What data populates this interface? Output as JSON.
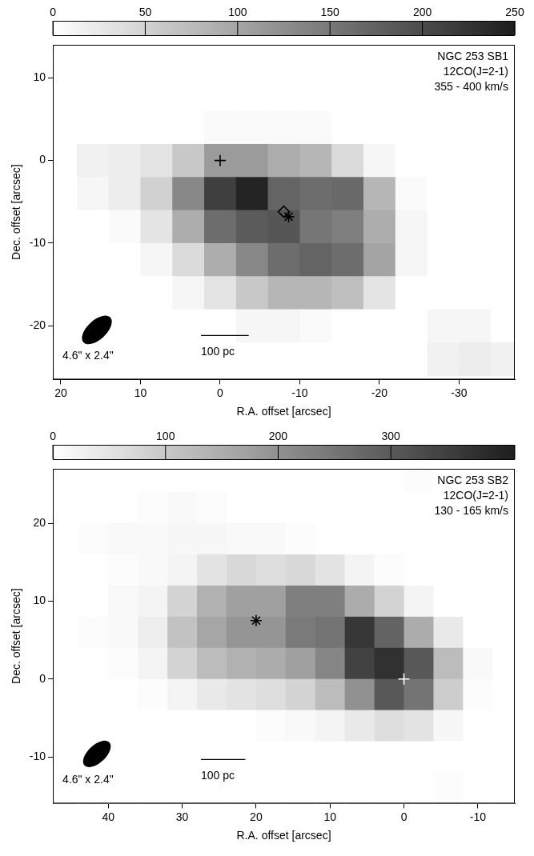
{
  "chart_data": [
    {
      "type": "heatmap",
      "annotations": [
        "NGC 253 SB1",
        "12CO(J=2-1)",
        "355 - 400 km/s"
      ],
      "xlabel": "R.A. offset [arcsec]",
      "ylabel": "Dec. offset [arcsec]",
      "xlim": [
        21,
        -37
      ],
      "ylim": [
        -26.5,
        14
      ],
      "xticks": [
        20,
        10,
        0,
        -10,
        -20,
        -30
      ],
      "yticks": [
        -20,
        -10,
        0,
        10
      ],
      "grid": false,
      "colorbar": {
        "range": [
          0,
          250
        ],
        "ticks": [
          0,
          50,
          100,
          150,
          200,
          250
        ]
      },
      "x": [
        20,
        16,
        12,
        8,
        4,
        0,
        -4,
        -8,
        -12,
        -16,
        -20,
        -24,
        -28,
        -32,
        -36
      ],
      "y": [
        12,
        8,
        4,
        0,
        -4,
        -8,
        -12,
        -16,
        -20,
        -24
      ],
      "cells": [
        [
          0,
          0,
          0,
          0,
          0,
          0,
          0,
          0,
          0,
          0,
          0,
          0,
          0,
          0,
          0
        ],
        [
          0,
          0,
          0,
          0,
          0,
          0,
          0,
          0,
          0,
          0,
          0,
          0,
          0,
          0,
          0
        ],
        [
          0,
          0,
          0,
          0,
          0,
          5,
          5,
          5,
          5,
          0,
          0,
          0,
          0,
          0,
          0
        ],
        [
          0,
          15,
          20,
          30,
          60,
          110,
          110,
          90,
          80,
          40,
          10,
          0,
          0,
          0,
          0
        ],
        [
          0,
          10,
          20,
          50,
          130,
          210,
          240,
          170,
          160,
          165,
          80,
          5,
          0,
          0,
          0
        ],
        [
          0,
          0,
          5,
          30,
          90,
          160,
          180,
          185,
          150,
          140,
          90,
          10,
          0,
          0,
          0
        ],
        [
          0,
          0,
          0,
          10,
          40,
          90,
          130,
          160,
          170,
          160,
          100,
          10,
          0,
          0,
          0
        ],
        [
          0,
          0,
          0,
          0,
          10,
          30,
          60,
          80,
          80,
          70,
          30,
          0,
          0,
          0,
          0
        ],
        [
          0,
          0,
          0,
          0,
          0,
          0,
          10,
          10,
          5,
          0,
          0,
          0,
          10,
          10,
          0
        ],
        [
          0,
          0,
          0,
          0,
          0,
          0,
          0,
          0,
          0,
          0,
          0,
          0,
          15,
          20,
          15
        ]
      ],
      "markers": [
        {
          "x": 0,
          "y": 0,
          "marker": "cross",
          "color": "#000000"
        },
        {
          "x": -8,
          "y": -6.2,
          "marker": "diamond",
          "color": "#000000"
        },
        {
          "x": -8.6,
          "y": -6.8,
          "marker": "asterisk",
          "color": "#000000"
        }
      ],
      "beam": {
        "label": "4.6\" x 2.4\"",
        "major": 4.6,
        "minor": 2.4
      },
      "scale_bar": {
        "label": "100 pc",
        "length": 6
      }
    },
    {
      "type": "heatmap",
      "annotations": [
        "NGC 253 SB2",
        "12CO(J=2-1)",
        "130 - 165 km/s"
      ],
      "xlabel": "R.A. offset [arcsec]",
      "ylabel": "Dec. offset [arcsec]",
      "xlim": [
        47.5,
        -15
      ],
      "ylim": [
        -16,
        27
      ],
      "xticks": [
        40,
        30,
        20,
        10,
        0,
        -10
      ],
      "yticks": [
        -10,
        0,
        10,
        20
      ],
      "grid": false,
      "colorbar": {
        "range": [
          0,
          410
        ],
        "ticks": [
          0,
          100,
          200,
          300
        ]
      },
      "x": [
        46,
        42,
        38,
        34,
        30,
        26,
        22,
        18,
        14,
        10,
        6,
        2,
        -2,
        -6,
        -10,
        -14
      ],
      "y": [
        26,
        22,
        18,
        14,
        10,
        6,
        2,
        -2,
        -6,
        -10,
        -14
      ],
      "cells": [
        [
          0,
          0,
          0,
          0,
          0,
          0,
          0,
          0,
          0,
          0,
          0,
          0,
          5,
          0,
          0,
          0
        ],
        [
          0,
          0,
          0,
          5,
          10,
          5,
          0,
          0,
          0,
          0,
          0,
          0,
          0,
          0,
          0,
          0
        ],
        [
          0,
          5,
          10,
          10,
          15,
          15,
          10,
          10,
          5,
          0,
          0,
          0,
          0,
          0,
          0,
          0
        ],
        [
          0,
          0,
          5,
          10,
          20,
          50,
          70,
          60,
          70,
          50,
          20,
          5,
          0,
          0,
          0,
          0
        ],
        [
          0,
          0,
          10,
          20,
          80,
          140,
          170,
          170,
          230,
          230,
          150,
          80,
          20,
          0,
          0,
          0
        ],
        [
          0,
          5,
          10,
          30,
          110,
          160,
          190,
          190,
          240,
          250,
          360,
          280,
          150,
          40,
          0,
          0
        ],
        [
          0,
          0,
          5,
          20,
          80,
          120,
          140,
          150,
          170,
          220,
          340,
          370,
          300,
          120,
          10,
          0
        ],
        [
          0,
          0,
          0,
          5,
          20,
          40,
          50,
          60,
          80,
          120,
          200,
          300,
          250,
          90,
          5,
          0
        ],
        [
          0,
          0,
          0,
          0,
          0,
          0,
          0,
          5,
          10,
          20,
          40,
          60,
          50,
          15,
          0,
          0
        ],
        [
          0,
          0,
          0,
          0,
          0,
          0,
          0,
          0,
          0,
          0,
          0,
          0,
          0,
          0,
          0,
          0
        ],
        [
          0,
          0,
          0,
          0,
          0,
          0,
          0,
          0,
          0,
          0,
          0,
          0,
          0,
          5,
          0,
          0
        ]
      ],
      "markers": [
        {
          "x": 0,
          "y": 0,
          "marker": "cross",
          "color": "#ffffff"
        },
        {
          "x": 20,
          "y": 7.5,
          "marker": "asterisk",
          "color": "#000000"
        }
      ],
      "beam": {
        "label": "4.6\" x 2.4\"",
        "major": 4.6,
        "minor": 2.4
      },
      "scale_bar": {
        "label": "100 pc",
        "length": 6
      }
    }
  ]
}
